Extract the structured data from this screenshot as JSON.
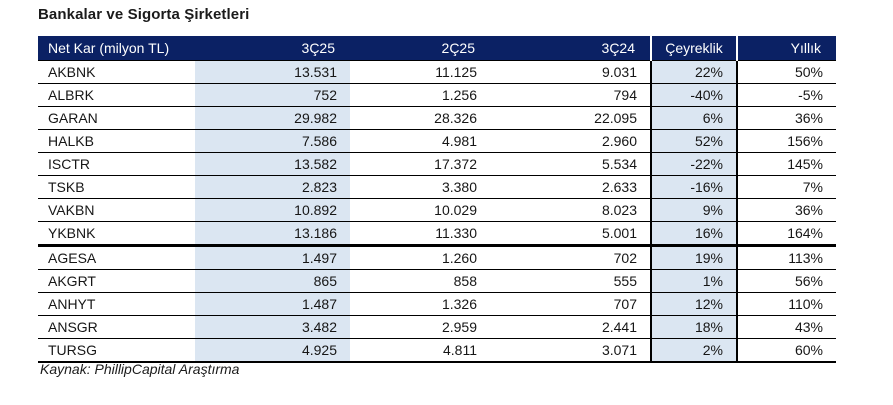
{
  "title": "Bankalar ve Sigorta Şirketleri",
  "source": "Kaynak: PhillipCapital Araştırma",
  "colors": {
    "header_bg": "#0b2164",
    "highlight_bg": "#dbe6f2",
    "grid_line": "#000000"
  },
  "table": {
    "columns": [
      {
        "key": "name",
        "label": "Net Kar (milyon TL)"
      },
      {
        "key": "q3_25",
        "label": "3Ç25"
      },
      {
        "key": "q2_25",
        "label": "2Ç25"
      },
      {
        "key": "q3_24",
        "label": "3Ç24"
      },
      {
        "key": "qoq",
        "label": "Çeyreklik"
      },
      {
        "key": "yoy",
        "label": "Yıllık"
      }
    ],
    "rows": [
      {
        "ticker": "AKBNK",
        "group": "banka",
        "values": [
          "13.531",
          "11.125",
          "9.031",
          "22%",
          "50%"
        ]
      },
      {
        "ticker": "ALBRK",
        "group": "banka",
        "values": [
          "752",
          "1.256",
          "794",
          "-40%",
          "-5%"
        ]
      },
      {
        "ticker": "GARAN",
        "group": "banka",
        "values": [
          "29.982",
          "28.326",
          "22.095",
          "6%",
          "36%"
        ]
      },
      {
        "ticker": "HALKB",
        "group": "banka",
        "values": [
          "7.586",
          "4.981",
          "2.960",
          "52%",
          "156%"
        ]
      },
      {
        "ticker": "ISCTR",
        "group": "banka",
        "values": [
          "13.582",
          "17.372",
          "5.534",
          "-22%",
          "145%"
        ]
      },
      {
        "ticker": "TSKB",
        "group": "banka",
        "values": [
          "2.823",
          "3.380",
          "2.633",
          "-16%",
          "7%"
        ]
      },
      {
        "ticker": "VAKBN",
        "group": "banka",
        "values": [
          "10.892",
          "10.029",
          "8.023",
          "9%",
          "36%"
        ]
      },
      {
        "ticker": "YKBNK",
        "group": "banka",
        "values": [
          "13.186",
          "11.330",
          "5.001",
          "16%",
          "164%"
        ]
      },
      {
        "ticker": "AGESA",
        "group": "sigorta",
        "values": [
          "1.497",
          "1.260",
          "702",
          "19%",
          "113%"
        ]
      },
      {
        "ticker": "AKGRT",
        "group": "sigorta",
        "values": [
          "865",
          "858",
          "555",
          "1%",
          "56%"
        ]
      },
      {
        "ticker": "ANHYT",
        "group": "sigorta",
        "values": [
          "1.487",
          "1.326",
          "707",
          "12%",
          "110%"
        ]
      },
      {
        "ticker": "ANSGR",
        "group": "sigorta",
        "values": [
          "3.482",
          "2.959",
          "2.441",
          "18%",
          "43%"
        ]
      },
      {
        "ticker": "TURSG",
        "group": "sigorta",
        "values": [
          "4.925",
          "4.811",
          "3.071",
          "2%",
          "60%"
        ]
      }
    ]
  }
}
